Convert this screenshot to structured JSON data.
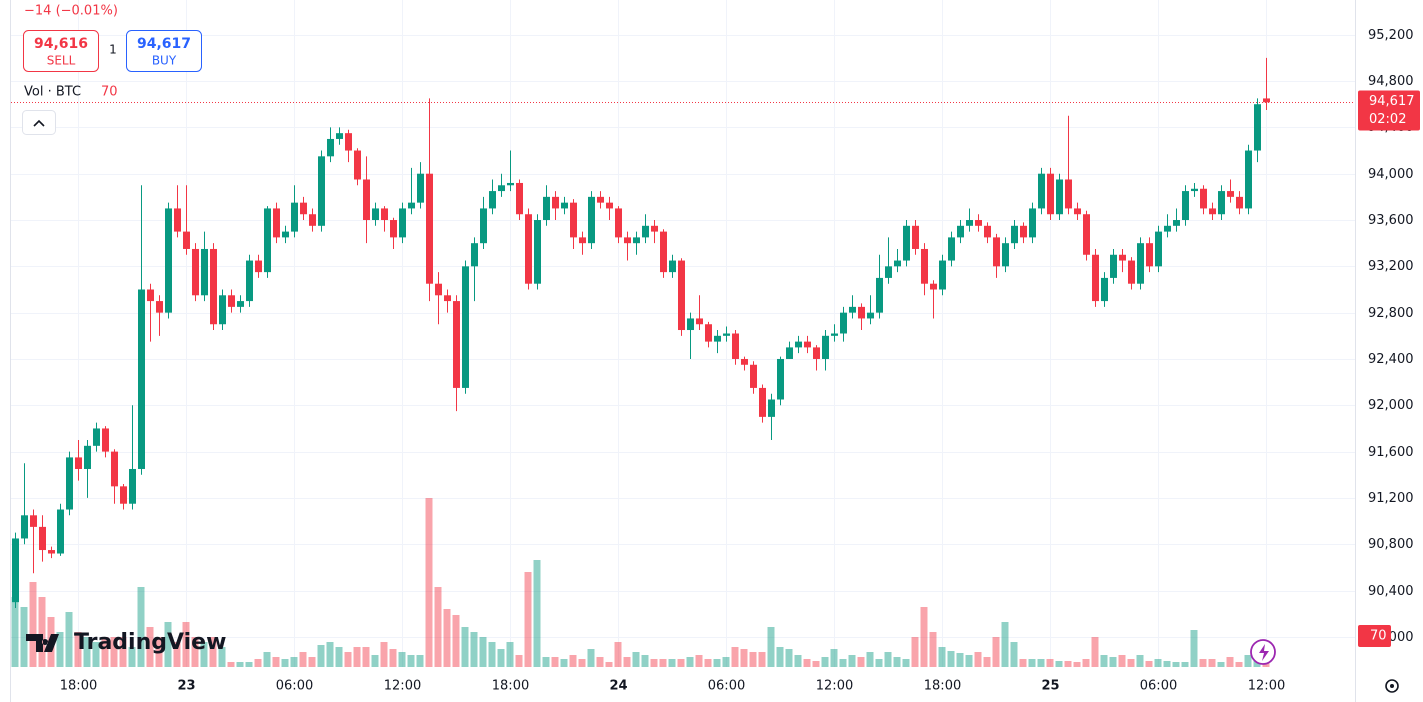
{
  "header": {
    "change": "−14 (−0.01%)",
    "sell_price": "94,616",
    "sell_label": "SELL",
    "quantity": "1",
    "buy_price": "94,617",
    "buy_label": "BUY",
    "volume_title": "Vol · BTC",
    "last_close_label": "94,617",
    "countdown": "02:02",
    "brand": "TradingView"
  },
  "chart_data": {
    "type": "candlestick",
    "up_color": "#089981",
    "down_color": "#f23645",
    "grid": true,
    "categories": [
      null,
      null,
      null,
      null,
      null,
      null,
      null,
      "18:00",
      null,
      null,
      null,
      null,
      null,
      null,
      null,
      null,
      null,
      null,
      null,
      "23",
      null,
      null,
      null,
      null,
      null,
      null,
      null,
      null,
      null,
      null,
      null,
      "06:00",
      null,
      null,
      null,
      null,
      null,
      null,
      null,
      null,
      null,
      null,
      null,
      "12:00",
      null,
      null,
      null,
      null,
      null,
      null,
      null,
      null,
      null,
      null,
      null,
      "18:00",
      null,
      null,
      null,
      null,
      null,
      null,
      null,
      null,
      null,
      null,
      null,
      "24",
      null,
      null,
      null,
      null,
      null,
      null,
      null,
      null,
      null,
      null,
      null,
      "06:00",
      null,
      null,
      null,
      null,
      null,
      null,
      null,
      null,
      null,
      null,
      null,
      "12:00",
      null,
      null,
      null,
      null,
      null,
      null,
      null,
      null,
      null,
      null,
      null,
      "18:00",
      null,
      null,
      null,
      null,
      null,
      null,
      null,
      null,
      null,
      null,
      null,
      "25",
      null,
      null,
      null,
      null,
      null,
      null,
      null,
      null,
      null,
      null,
      null,
      "06:00",
      null,
      null,
      null,
      null,
      null,
      null,
      null,
      null,
      null,
      null,
      null,
      "12:00"
    ],
    "open": [
      90300,
      90850,
      91050,
      90950,
      90750,
      90720,
      91100,
      91550,
      91450,
      91650,
      91800,
      91600,
      91300,
      91150,
      91450,
      93000,
      92900,
      92800,
      93700,
      93500,
      93350,
      92950,
      93350,
      92700,
      92950,
      92850,
      92900,
      93250,
      93150,
      93700,
      93450,
      93500,
      93750,
      93650,
      93550,
      94150,
      94300,
      94350,
      94200,
      93950,
      93600,
      93700,
      93600,
      93450,
      93700,
      93750,
      94000,
      93050,
      92950,
      92900,
      92150,
      93200,
      93400,
      93700,
      93850,
      93900,
      93920,
      93650,
      93050,
      93600,
      93800,
      93700,
      93750,
      93450,
      93400,
      93800,
      93750,
      93700,
      93450,
      93400,
      93450,
      93550,
      93500,
      93150,
      93250,
      92650,
      92750,
      92700,
      92550,
      92600,
      92620,
      92400,
      92350,
      92150,
      91900,
      92050,
      92400,
      92500,
      92550,
      92500,
      92400,
      92600,
      92620,
      92800,
      92850,
      92750,
      92800,
      93100,
      93200,
      93250,
      93550,
      93350,
      93050,
      93000,
      93250,
      93450,
      93550,
      93600,
      93550,
      93450,
      93200,
      93400,
      93550,
      93450,
      93700,
      94000,
      93650,
      93950,
      93700,
      93650,
      93300,
      92900,
      93100,
      93300,
      93250,
      93050,
      93400,
      93200,
      93500,
      93550,
      93600,
      93850,
      93870,
      93700,
      93650,
      93850,
      93800,
      93700,
      94200,
      94650
    ],
    "high": [
      90900,
      91500,
      91100,
      91050,
      90780,
      91150,
      91600,
      91700,
      91700,
      91850,
      91820,
      91620,
      91320,
      92000,
      93900,
      93050,
      92950,
      93750,
      93900,
      93900,
      93400,
      93500,
      93400,
      93000,
      93000,
      92950,
      93300,
      93300,
      93720,
      93750,
      93550,
      93900,
      93800,
      93700,
      94200,
      94400,
      94400,
      94380,
      94220,
      94150,
      93750,
      93720,
      93620,
      93750,
      94050,
      94100,
      94650,
      93150,
      93000,
      92950,
      93250,
      93450,
      93800,
      93950,
      94000,
      94200,
      93950,
      93700,
      93650,
      93900,
      93850,
      93800,
      93780,
      93500,
      93850,
      93850,
      93800,
      93720,
      93500,
      93500,
      93650,
      93600,
      93520,
      93300,
      93270,
      92800,
      92950,
      92720,
      92650,
      92680,
      92650,
      92420,
      92380,
      92180,
      92100,
      92420,
      92550,
      92600,
      92600,
      92520,
      92650,
      92700,
      92850,
      92950,
      92880,
      92950,
      93300,
      93450,
      93350,
      93600,
      93600,
      93400,
      93080,
      93300,
      93500,
      93600,
      93700,
      93650,
      93580,
      93480,
      93450,
      93600,
      93580,
      93750,
      94050,
      94050,
      94000,
      94500,
      93750,
      93680,
      93350,
      93150,
      93350,
      93350,
      93280,
      93450,
      93450,
      93550,
      93650,
      93700,
      93900,
      93920,
      93900,
      93750,
      93900,
      93950,
      93850,
      94250,
      94650,
      95000
    ],
    "low": [
      90250,
      90800,
      90550,
      90650,
      90680,
      90700,
      91050,
      91350,
      91200,
      91600,
      91550,
      91150,
      91100,
      91100,
      91400,
      92550,
      92600,
      92750,
      93450,
      93300,
      92900,
      92900,
      92650,
      92650,
      92800,
      92800,
      92850,
      93100,
      93100,
      93400,
      93400,
      93450,
      93600,
      93500,
      93500,
      94100,
      94250,
      94100,
      93900,
      93400,
      93550,
      93500,
      93350,
      93400,
      93650,
      93700,
      92900,
      92700,
      92800,
      91950,
      92100,
      92900,
      93350,
      93650,
      93800,
      93850,
      93600,
      93000,
      93000,
      93550,
      93600,
      93650,
      93350,
      93300,
      93350,
      93700,
      93600,
      93400,
      93250,
      93300,
      93400,
      93400,
      93100,
      93100,
      92600,
      92400,
      92650,
      92500,
      92450,
      92550,
      92350,
      92300,
      92100,
      91850,
      91700,
      92000,
      92400,
      92450,
      92450,
      92300,
      92300,
      92550,
      92550,
      92750,
      92650,
      92700,
      92750,
      93050,
      93150,
      93200,
      93300,
      92950,
      92750,
      92950,
      93200,
      93400,
      93500,
      93500,
      93400,
      93100,
      93150,
      93350,
      93400,
      93400,
      93650,
      93600,
      93600,
      93650,
      93600,
      93250,
      92850,
      92850,
      93050,
      93150,
      93000,
      93000,
      93150,
      93150,
      93450,
      93500,
      93550,
      93800,
      93650,
      93600,
      93600,
      93750,
      93650,
      93650,
      94100,
      94550
    ],
    "close": [
      90850,
      91050,
      90950,
      90750,
      90720,
      91100,
      91550,
      91450,
      91650,
      91800,
      91600,
      91300,
      91150,
      91450,
      93000,
      92900,
      92800,
      93700,
      93500,
      93350,
      92950,
      93350,
      92700,
      92950,
      92850,
      92900,
      93250,
      93150,
      93700,
      93450,
      93500,
      93750,
      93650,
      93550,
      94150,
      94300,
      94350,
      94200,
      93950,
      93600,
      93700,
      93600,
      93450,
      93700,
      93750,
      94000,
      93050,
      92950,
      92900,
      92150,
      93200,
      93400,
      93700,
      93850,
      93900,
      93920,
      93650,
      93050,
      93600,
      93800,
      93700,
      93750,
      93450,
      93400,
      93800,
      93750,
      93700,
      93450,
      93400,
      93450,
      93550,
      93500,
      93150,
      93250,
      92650,
      92750,
      92700,
      92550,
      92600,
      92620,
      92400,
      92350,
      92150,
      91900,
      92050,
      92400,
      92500,
      92550,
      92500,
      92400,
      92600,
      92620,
      92800,
      92850,
      92750,
      92800,
      93100,
      93200,
      93250,
      93550,
      93350,
      93050,
      93000,
      93250,
      93450,
      93550,
      93600,
      93550,
      93450,
      93200,
      93400,
      93550,
      93450,
      93700,
      94000,
      93650,
      93950,
      93700,
      93650,
      93300,
      92900,
      93100,
      93300,
      93250,
      93050,
      93400,
      93200,
      93500,
      93550,
      93600,
      93850,
      93870,
      93700,
      93650,
      93850,
      93800,
      93700,
      94200,
      94600,
      94617
    ],
    "volume": [
      560,
      480,
      680,
      560,
      400,
      280,
      440,
      280,
      240,
      200,
      240,
      240,
      240,
      160,
      640,
      320,
      240,
      360,
      200,
      360,
      240,
      200,
      240,
      160,
      40,
      40,
      40,
      64,
      120,
      80,
      64,
      80,
      120,
      80,
      176,
      200,
      160,
      120,
      160,
      160,
      96,
      200,
      144,
      120,
      96,
      96,
      1352,
      640,
      464,
      416,
      320,
      280,
      240,
      200,
      144,
      200,
      96,
      760,
      856,
      80,
      80,
      64,
      96,
      64,
      144,
      80,
      40,
      200,
      80,
      120,
      96,
      64,
      64,
      64,
      64,
      80,
      96,
      64,
      64,
      80,
      160,
      144,
      120,
      120,
      320,
      160,
      144,
      96,
      64,
      48,
      80,
      144,
      64,
      96,
      80,
      120,
      64,
      120,
      80,
      64,
      240,
      480,
      280,
      160,
      128,
      112,
      96,
      120,
      80,
      240,
      360,
      200,
      64,
      64,
      64,
      64,
      48,
      48,
      40,
      64,
      240,
      96,
      80,
      96,
      64,
      96,
      48,
      64,
      48,
      40,
      40,
      296,
      64,
      64,
      40,
      80,
      40,
      96,
      80,
      70
    ],
    "ylim": [
      89740,
      95500
    ],
    "yticks": [
      {
        "value": 95200,
        "label": "95,200"
      },
      {
        "value": 94800,
        "label": "94,800"
      },
      {
        "value": 94400,
        "label": "94,400"
      },
      {
        "value": 94000,
        "label": "94,000"
      },
      {
        "value": 93600,
        "label": "93,600"
      },
      {
        "value": 93200,
        "label": "93,200"
      },
      {
        "value": 92800,
        "label": "92,800"
      },
      {
        "value": 92400,
        "label": "92,400"
      },
      {
        "value": 92000,
        "label": "92,000"
      },
      {
        "value": 91600,
        "label": "91,600"
      },
      {
        "value": 91200,
        "label": "91,200"
      },
      {
        "value": 90800,
        "label": "90,800"
      },
      {
        "value": 90400,
        "label": "90,400"
      },
      {
        "value": 90000,
        "label": "90,000"
      }
    ]
  }
}
